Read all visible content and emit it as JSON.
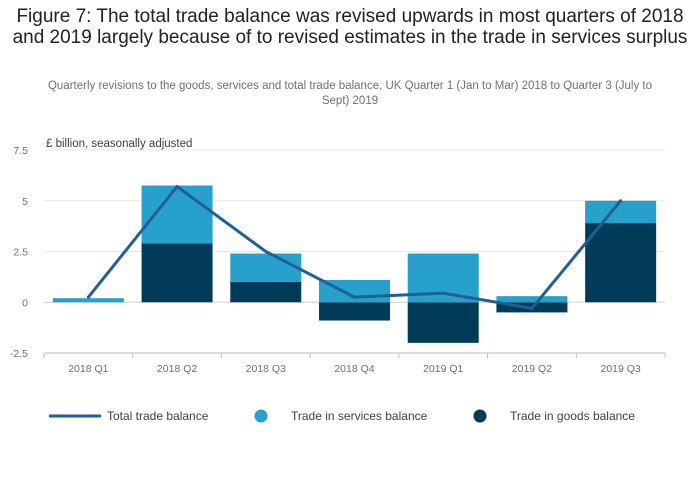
{
  "title": "Figure 7: The total trade balance was revised upwards in most quarters of 2018 and 2019 largely because of to revised estimates in the trade in services surplus",
  "subtitle": "Quarterly revisions to the goods, services and total trade balance, UK Quarter 1 (Jan to Mar) 2018 to Quarter 3 (July to Sept) 2019",
  "chart_data": {
    "type": "bar",
    "stacked": true,
    "ylabel": "£ billion, seasonally adjusted",
    "ylim": [
      -2.5,
      7.5
    ],
    "yticks": [
      -2.5,
      0,
      2.5,
      5,
      7.5
    ],
    "ytick_labels": [
      "-2.5",
      "0",
      "2.5",
      "5",
      "7.5"
    ],
    "categories": [
      "2018 Q1",
      "2018 Q2",
      "2018 Q3",
      "2018 Q4",
      "2019 Q1",
      "2019 Q2",
      "2019 Q3"
    ],
    "series": [
      {
        "name": "Trade in goods balance",
        "kind": "bar",
        "color": "#003c57",
        "values": [
          0.0,
          2.9,
          1.0,
          -0.9,
          -2.0,
          -0.5,
          3.9
        ]
      },
      {
        "name": "Trade in services balance",
        "kind": "bar",
        "color": "#27a0cc",
        "values": [
          0.2,
          2.85,
          1.4,
          1.1,
          2.4,
          0.3,
          1.1
        ]
      },
      {
        "name": "Total trade balance",
        "kind": "line",
        "color": "#206095",
        "values": [
          0.25,
          5.7,
          2.5,
          0.25,
          0.45,
          -0.3,
          5.0
        ]
      }
    ],
    "legend": {
      "position": "bottom",
      "items": [
        {
          "label": "Total trade balance",
          "marker": "line",
          "color": "#206095"
        },
        {
          "label": "Trade in services balance",
          "marker": "circle",
          "color": "#27a0cc"
        },
        {
          "label": "Trade in goods balance",
          "marker": "circle",
          "color": "#003c57"
        }
      ]
    },
    "grid": true
  }
}
